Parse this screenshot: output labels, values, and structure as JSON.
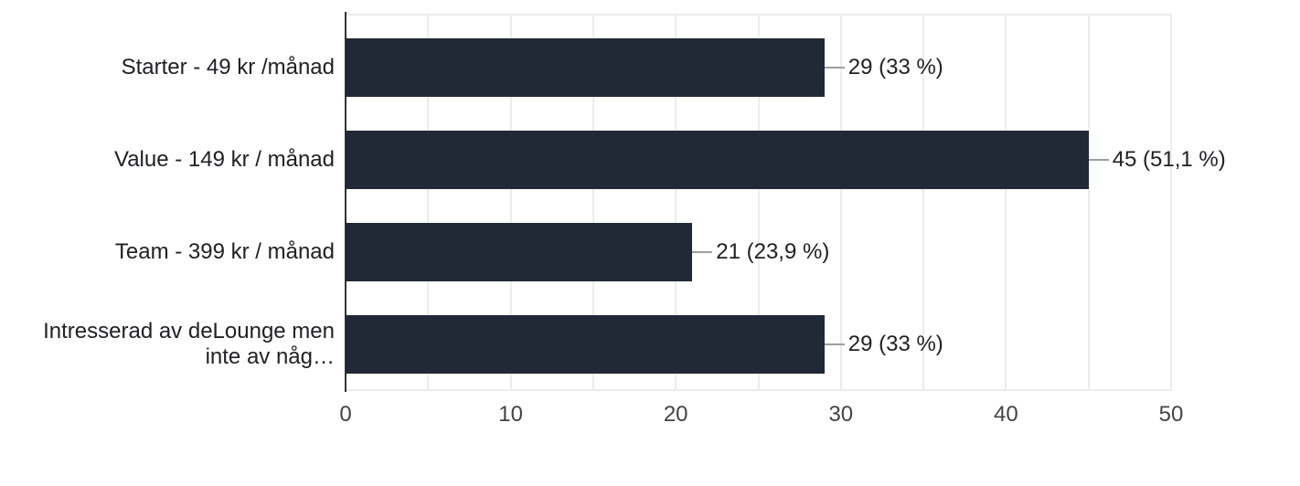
{
  "chart_data": {
    "type": "bar",
    "orientation": "horizontal",
    "title": "",
    "categories": [
      "Starter - 49 kr /månad",
      "Value - 149 kr / månad",
      "Team - 399 kr / månad",
      "Intresserad av deLounge men inte av någ…"
    ],
    "category_display_lines": [
      [
        "Starter - 49 kr /månad"
      ],
      [
        "Value - 149 kr / månad"
      ],
      [
        "Team - 399 kr / månad"
      ],
      [
        "Intresserad av deLounge men",
        "inte av någ…"
      ]
    ],
    "values": [
      29,
      45,
      21,
      29
    ],
    "value_labels": [
      "29 (33 %)",
      "45 (51,1 %)",
      "21 (23,9 %)",
      "29 (33 %)"
    ],
    "x_ticks": [
      0,
      10,
      20,
      30,
      40,
      50
    ],
    "xlim": [
      0,
      50
    ],
    "minor_gridline_step": 5,
    "grid": true,
    "legend": "none",
    "colors": {
      "bar": "#212936",
      "grid": "#ececec",
      "axis": "#333333",
      "callout": "#9e9e9e",
      "text": "#202124",
      "tick_text": "#444444",
      "background": "#ffffff"
    }
  }
}
